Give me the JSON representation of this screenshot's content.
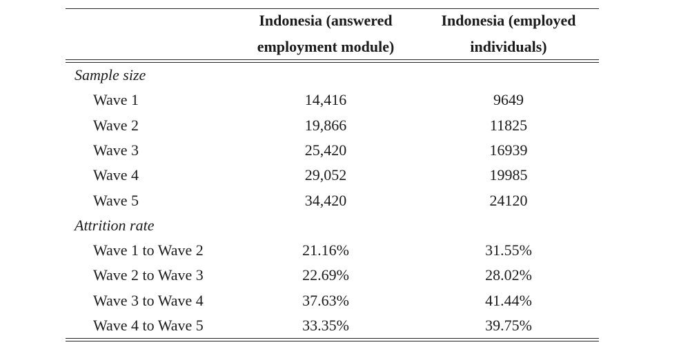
{
  "table": {
    "header": [
      [
        "Indonesia (answered",
        "employment module)"
      ],
      [
        "Indonesia (employed",
        "individuals)"
      ]
    ],
    "sections": [
      {
        "title": "Sample size",
        "rows": [
          [
            "Wave 1",
            "14,416",
            "9649"
          ],
          [
            "Wave 2",
            "19,866",
            "11825"
          ],
          [
            "Wave 3",
            "25,420",
            "16939"
          ],
          [
            "Wave 4",
            "29,052",
            "19985"
          ],
          [
            "Wave 5",
            "34,420",
            "24120"
          ]
        ]
      },
      {
        "title": "Attrition rate",
        "rows": [
          [
            "Wave 1 to Wave 2",
            "21.16%",
            "31.55%"
          ],
          [
            "Wave 2 to Wave 3",
            "22.69%",
            "28.02%"
          ],
          [
            "Wave 3 to Wave 4",
            "37.63%",
            "41.44%"
          ],
          [
            "Wave 4 to Wave 5",
            "33.35%",
            "39.75%"
          ]
        ]
      }
    ]
  }
}
